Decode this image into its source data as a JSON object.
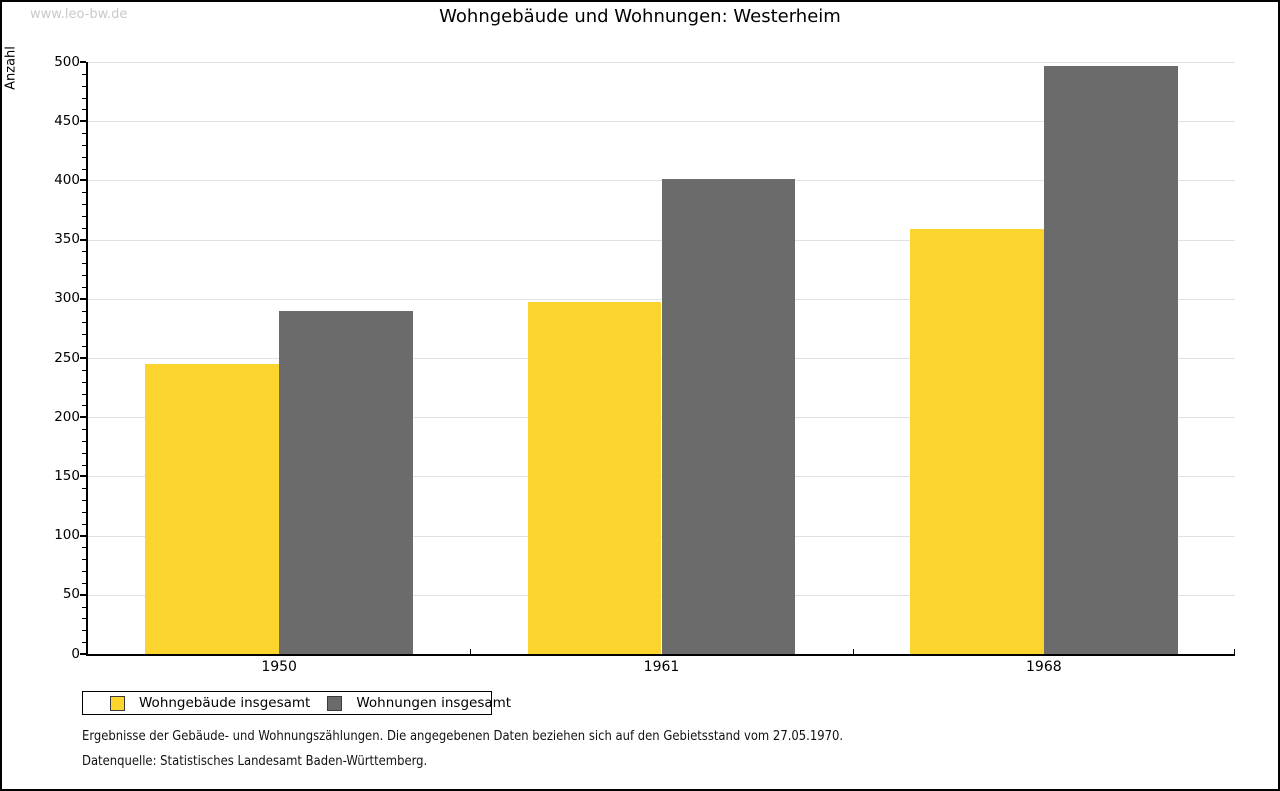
{
  "watermark": "www.leo-bw.de",
  "chart_data": {
    "type": "bar",
    "title": "Wohngebäude und Wohnungen: Westerheim",
    "ylabel": "Anzahl",
    "xlabel": "",
    "categories": [
      "1950",
      "1961",
      "1968"
    ],
    "series": [
      {
        "name": "Wohngebäude insgesamt",
        "color": "#fcd42e",
        "values": [
          245,
          297,
          359
        ]
      },
      {
        "name": "Wohnungen insgesamt",
        "color": "#6b6b6b",
        "values": [
          290,
          401,
          497
        ]
      }
    ],
    "ylim": [
      0,
      500
    ],
    "ytick_step": 50,
    "yminor_step": 10,
    "grid": true,
    "legend_position": "bottom-left"
  },
  "footnotes": [
    "Ergebnisse der Gebäude- und Wohnungszählungen. Die angegebenen Daten beziehen sich auf den Gebietsstand vom 27.05.1970.",
    "Datenquelle: Statistisches Landesamt Baden-Württemberg."
  ]
}
